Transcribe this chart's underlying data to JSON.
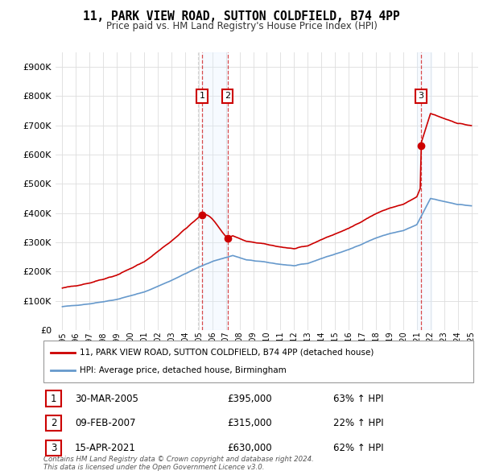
{
  "title": "11, PARK VIEW ROAD, SUTTON COLDFIELD, B74 4PP",
  "subtitle": "Price paid vs. HM Land Registry's House Price Index (HPI)",
  "ylabel_ticks": [
    "£0",
    "£100K",
    "£200K",
    "£300K",
    "£400K",
    "£500K",
    "£600K",
    "£700K",
    "£800K",
    "£900K"
  ],
  "ytick_values": [
    0,
    100000,
    200000,
    300000,
    400000,
    500000,
    600000,
    700000,
    800000,
    900000
  ],
  "ylim": [
    0,
    950000
  ],
  "sale_color": "#cc0000",
  "hpi_color": "#6699cc",
  "vline_fill_color": "#ddeeff",
  "transactions": [
    {
      "date": 2005.25,
      "price": 395000,
      "label": "1"
    },
    {
      "date": 2007.11,
      "price": 315000,
      "label": "2"
    },
    {
      "date": 2021.29,
      "price": 630000,
      "label": "3"
    }
  ],
  "legend_property_label": "11, PARK VIEW ROAD, SUTTON COLDFIELD, B74 4PP (detached house)",
  "legend_hpi_label": "HPI: Average price, detached house, Birmingham",
  "table_rows": [
    {
      "num": "1",
      "date": "30-MAR-2005",
      "price": "£395,000",
      "change": "63% ↑ HPI"
    },
    {
      "num": "2",
      "date": "09-FEB-2007",
      "price": "£315,000",
      "change": "22% ↑ HPI"
    },
    {
      "num": "3",
      "date": "15-APR-2021",
      "price": "£630,000",
      "change": "62% ↑ HPI"
    }
  ],
  "footnote": "Contains HM Land Registry data © Crown copyright and database right 2024.\nThis data is licensed under the Open Government Licence v3.0.",
  "background_color": "#ffffff",
  "grid_color": "#dddddd"
}
